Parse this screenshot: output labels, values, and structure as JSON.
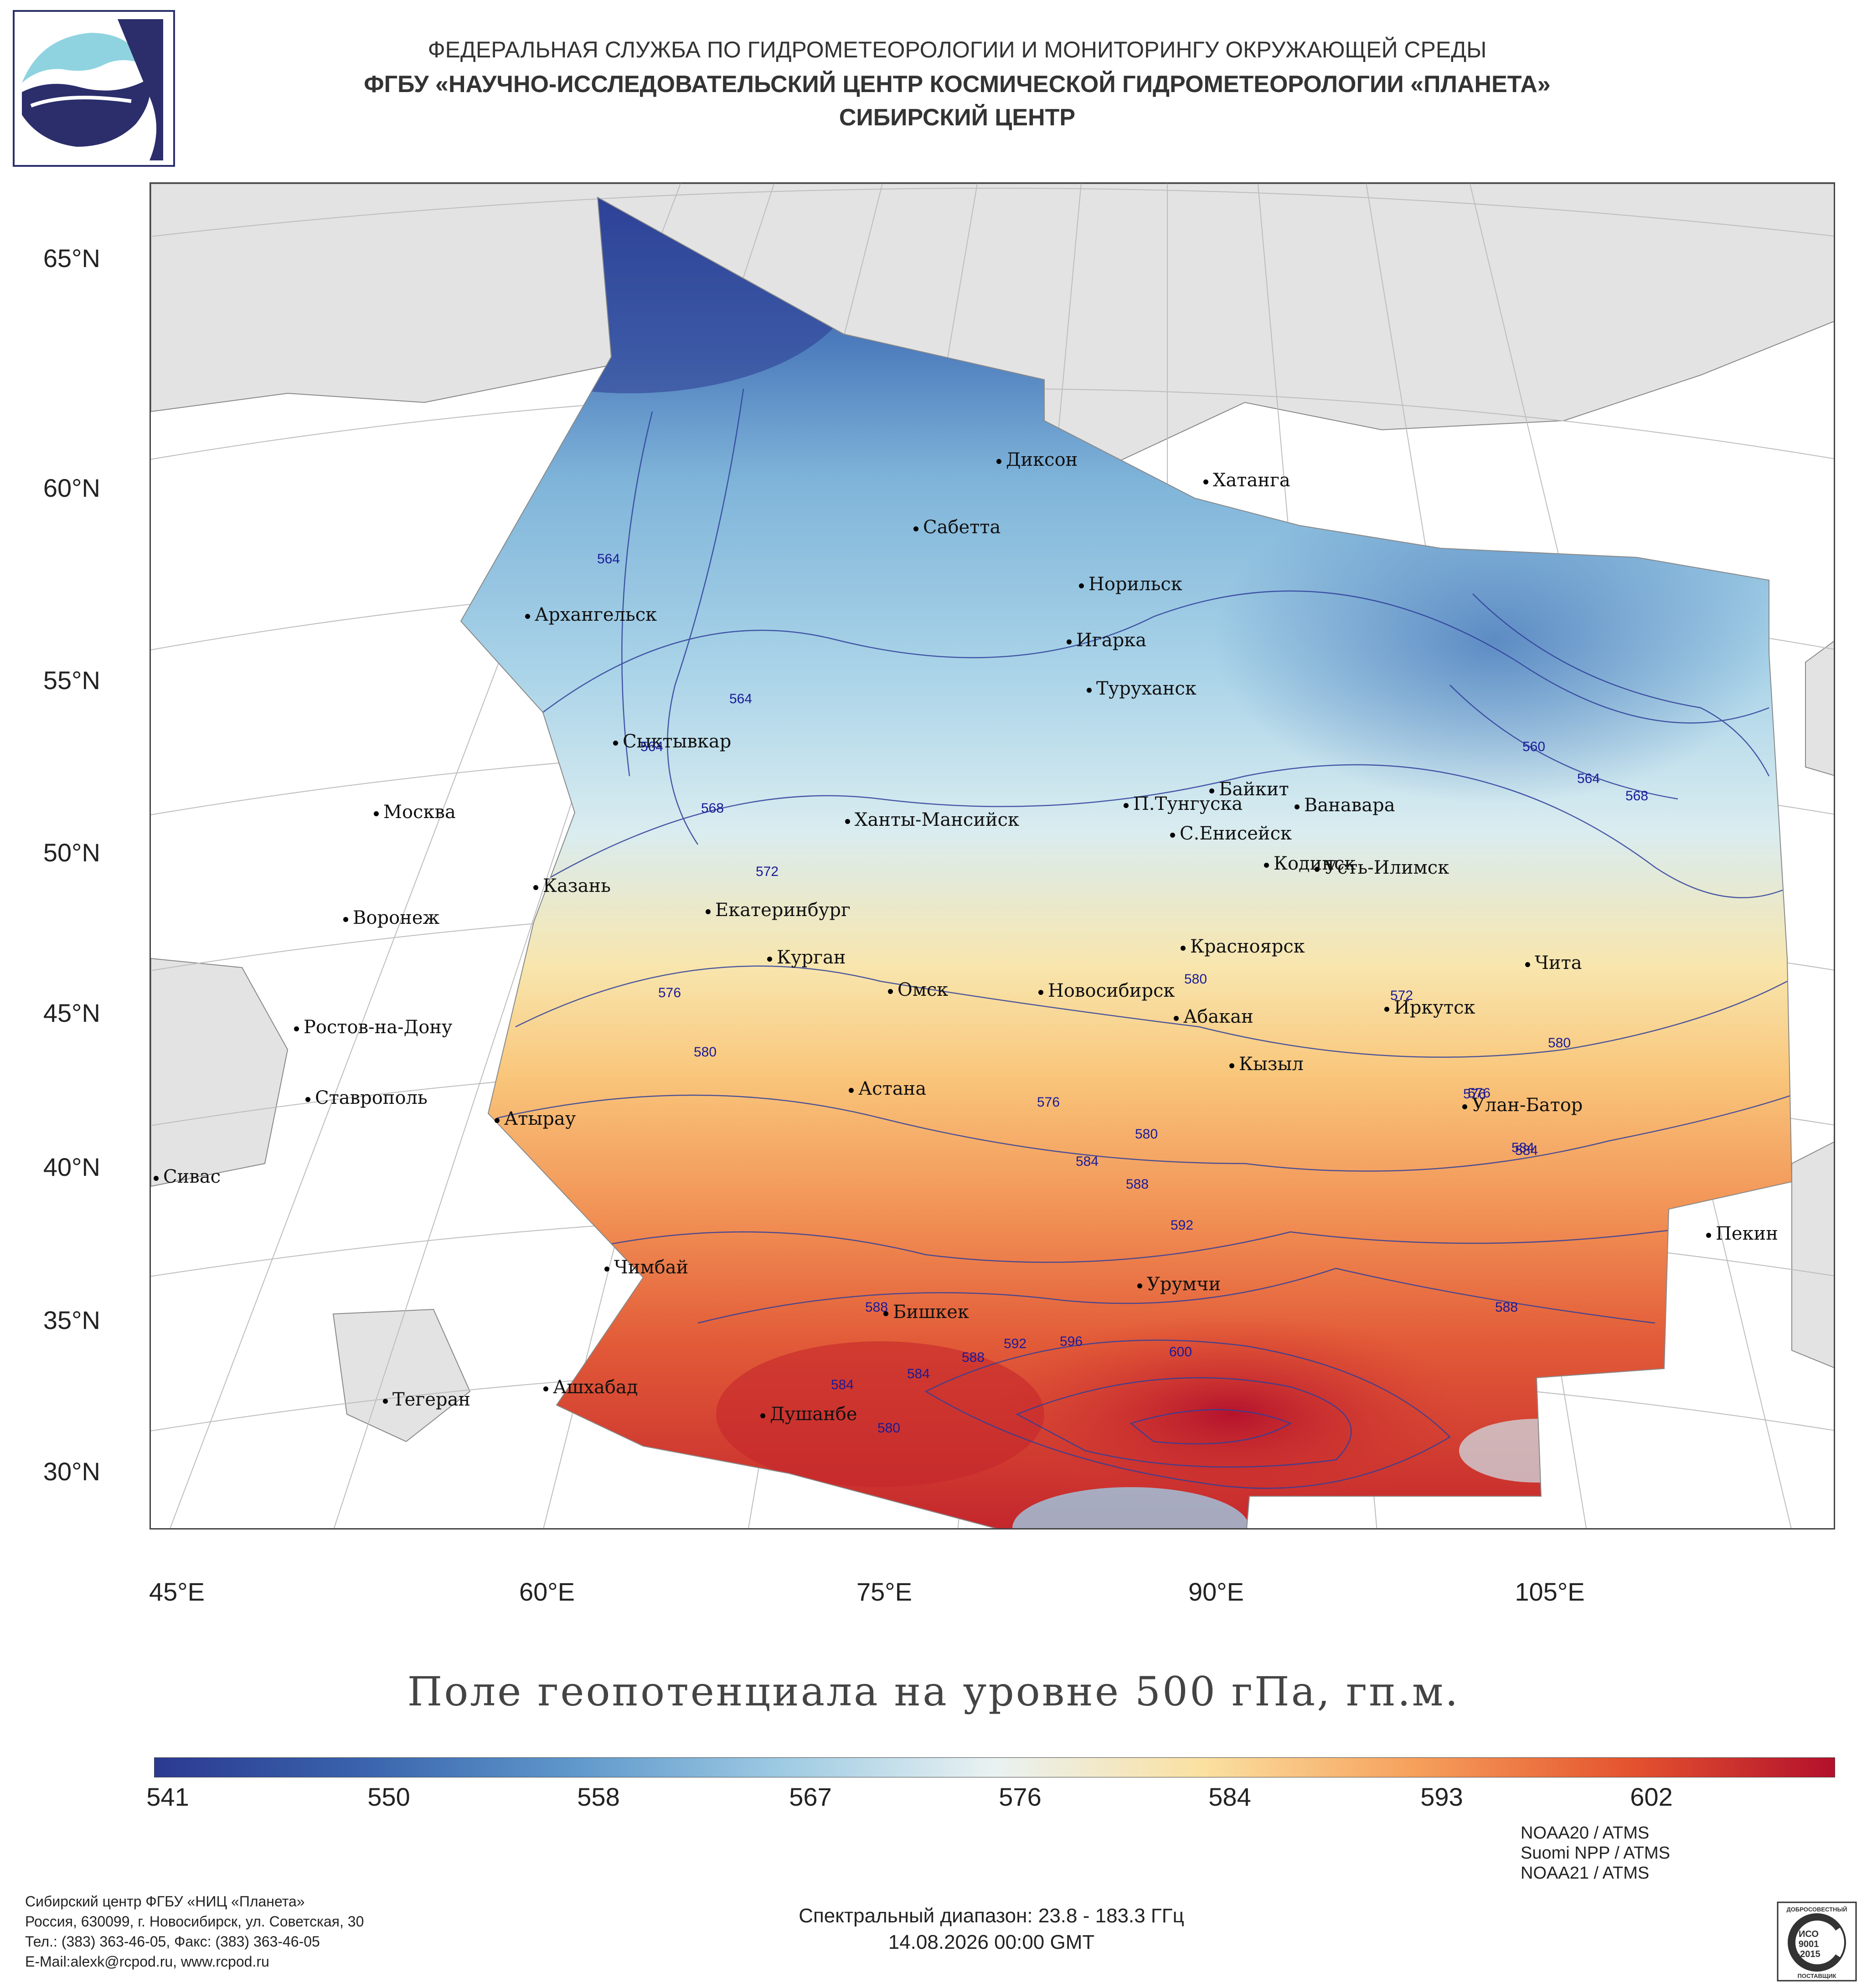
{
  "header": {
    "line1": "ФЕДЕРАЛЬНАЯ СЛУЖБА ПО ГИДРОМЕТЕОРОЛОГИИ И МОНИТОРИНГУ ОКРУЖАЮЩЕЙ СРЕДЫ",
    "line2": "ФГБУ «НАУЧНО-ИССЛЕДОВАТЕЛЬСКИЙ ЦЕНТР КОСМИЧЕСКОЙ ГИДРОМЕТЕОРОЛОГИИ «ПЛАНЕТА»",
    "line3": "СИБИРСКИЙ ЦЕНТР"
  },
  "map": {
    "lat_labels": [
      "65°N",
      "60°N",
      "55°N",
      "50°N",
      "45°N",
      "40°N",
      "35°N",
      "30°N"
    ],
    "lon_labels": [
      "45°E",
      "60°E",
      "75°E",
      "90°E",
      "105°E"
    ],
    "cities": [
      "Диксон",
      "Хатанга",
      "Сабетта",
      "Норильск",
      "Архангельск",
      "Игарка",
      "Туруханск",
      "Сыктывкар",
      "Байкит",
      "П.Тунгуска",
      "Ванавара",
      "Москва",
      "Ханты-Мансийск",
      "С.Енисейск",
      "Кодинск",
      "Усть-Илимск",
      "Казань",
      "Екатеринбург",
      "Воронеж",
      "Красноярск",
      "Курган",
      "Чита",
      "Омск",
      "Новосибирск",
      "Иркутск",
      "Абакан",
      "Ростов-на-Дону",
      "Кызыл",
      "Астана",
      "Ставрополь",
      "Улан-Батор",
      "Атырау",
      "Сивас",
      "Пекин",
      "Чимбай",
      "Урумчи",
      "Бишкек",
      "Ашхабад",
      "Тегеран",
      "Душанбе"
    ],
    "contour_labels": [
      "564",
      "564",
      "568",
      "564",
      "572",
      "576",
      "580",
      "560",
      "564",
      "568",
      "576",
      "580",
      "584",
      "580",
      "576",
      "584",
      "588",
      "592",
      "588",
      "600",
      "596",
      "592",
      "588",
      "584",
      "584",
      "580",
      "572",
      "580",
      "576",
      "584",
      "588"
    ]
  },
  "map_title": "Поле геопотенциала на уровне 500 гПа, гп.м.",
  "colorbar": {
    "labels": [
      "541",
      "550",
      "558",
      "567",
      "576",
      "584",
      "593",
      "602"
    ],
    "colors": [
      "#2b3990",
      "#3a64ad",
      "#5f98cb",
      "#9fcbe3",
      "#e9f2f2",
      "#fbe0a0",
      "#f6a05c",
      "#e5552f",
      "#b3102c"
    ]
  },
  "footer": {
    "org": "Сибирский центр ФГБУ «НИЦ «Планета»",
    "address": "Россия, 630099, г. Новосибирск, ул. Советская, 30",
    "phone": "Тел.: (383) 363-46-05, Факс: (383) 363-46-05",
    "email": "E-Mail:alexk@rcpod.ru, www.rcpod.ru",
    "satellites": [
      "NOAA20 / ATMS",
      "Suomi NPP / ATMS",
      "NOAA21 / ATMS"
    ],
    "spectral_range": "Спектральный диапазон: 23.8 - 183.3 ГГц",
    "datetime": "14.08.2026 00:00 GMT",
    "iso_top": "ДОБРОСОВЕСТНЫЙ",
    "iso_mid1": "ИСО",
    "iso_mid2": "9001",
    "iso_mid3": "-2015",
    "iso_bottom": "ПОСТАВЩИК"
  }
}
